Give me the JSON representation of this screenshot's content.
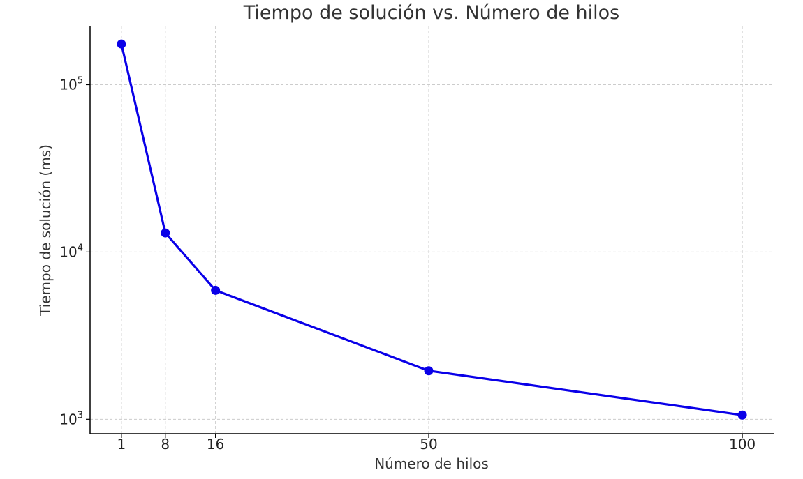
{
  "chart_data": {
    "type": "line",
    "title": "Tiempo de solución vs. Número de hilos",
    "xlabel": "Número de hilos",
    "ylabel": "Tiempo de solución (ms)",
    "x": [
      1,
      8,
      16,
      50,
      100
    ],
    "xticks": [
      1,
      8,
      16,
      50,
      100
    ],
    "xlim": [
      -4,
      105
    ],
    "y_scale": "log",
    "ylim": [
      820,
      225000
    ],
    "yticks": [
      {
        "value": 1000,
        "base": "10",
        "exp": "3"
      },
      {
        "value": 10000,
        "base": "10",
        "exp": "4"
      },
      {
        "value": 100000,
        "base": "10",
        "exp": "5"
      }
    ],
    "grid": true,
    "series": [
      {
        "values": [
          175000,
          13000,
          5900,
          1950,
          1060
        ],
        "color": "#0a00e8",
        "marker": "circle"
      }
    ]
  }
}
